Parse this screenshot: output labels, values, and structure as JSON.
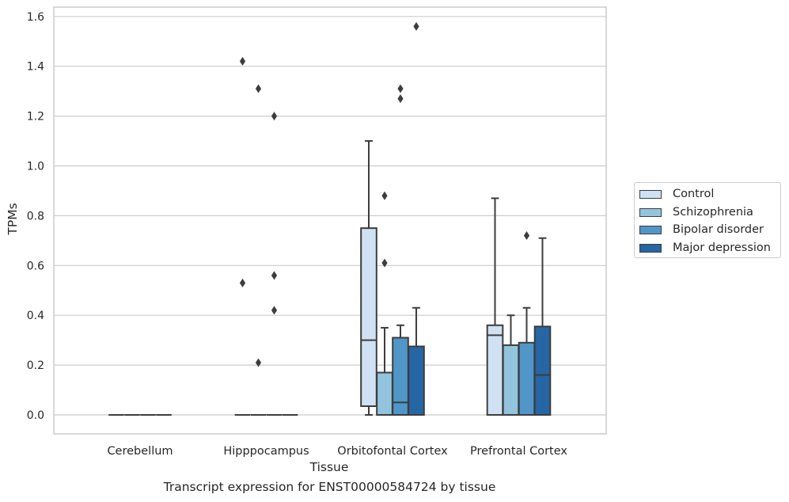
{
  "chart_data": {
    "type": "box",
    "xlabel": "Tissue",
    "ylabel": "TPMs",
    "caption": "Transcript expression for ENST00000584724 by tissue",
    "ylim": [
      -0.08,
      1.65
    ],
    "yticks": [
      0.0,
      0.2,
      0.4,
      0.6,
      0.8,
      1.0,
      1.2,
      1.4,
      1.6
    ],
    "ytick_labels": [
      "0.0",
      "0.2",
      "0.4",
      "0.6",
      "0.8",
      "1.0",
      "1.2",
      "1.4",
      "1.6"
    ],
    "categories": [
      "Cerebellum",
      "Hipppocampus",
      "Orbitofontal Cortex",
      "Prefrontal Cortex"
    ],
    "grid": "horizontal",
    "legend_position": "right",
    "series": [
      {
        "name": "Control",
        "color": "#cfe1f2",
        "boxes": [
          {
            "q1": 0,
            "median": 0,
            "q3": 0,
            "whisker_low": 0,
            "whisker_high": 0,
            "outliers": []
          },
          {
            "q1": 0,
            "median": 0,
            "q3": 0,
            "whisker_low": 0,
            "whisker_high": 0,
            "outliers": [
              0.53,
              1.42
            ]
          },
          {
            "q1": 0.035,
            "median": 0.3,
            "q3": 0.75,
            "whisker_low": 0,
            "whisker_high": 1.1,
            "outliers": []
          },
          {
            "q1": 0,
            "median": 0.32,
            "q3": 0.36,
            "whisker_low": 0,
            "whisker_high": 0.87,
            "outliers": []
          }
        ]
      },
      {
        "name": "Schizophrenia",
        "color": "#93c4de",
        "boxes": [
          {
            "q1": 0,
            "median": 0,
            "q3": 0,
            "whisker_low": 0,
            "whisker_high": 0,
            "outliers": []
          },
          {
            "q1": 0,
            "median": 0,
            "q3": 0,
            "whisker_low": 0,
            "whisker_high": 0,
            "outliers": [
              0.21,
              1.31
            ]
          },
          {
            "q1": 0,
            "median": 0,
            "q3": 0.17,
            "whisker_low": 0,
            "whisker_high": 0.35,
            "outliers": [
              0.61,
              0.88
            ]
          },
          {
            "q1": 0,
            "median": 0,
            "q3": 0.28,
            "whisker_low": 0,
            "whisker_high": 0.4,
            "outliers": []
          }
        ]
      },
      {
        "name": "Bipolar disorder",
        "color": "#5096c8",
        "boxes": [
          {
            "q1": 0,
            "median": 0,
            "q3": 0,
            "whisker_low": 0,
            "whisker_high": 0,
            "outliers": []
          },
          {
            "q1": 0,
            "median": 0,
            "q3": 0,
            "whisker_low": 0,
            "whisker_high": 0,
            "outliers": [
              0.42,
              0.56,
              1.2
            ]
          },
          {
            "q1": 0,
            "median": 0.05,
            "q3": 0.31,
            "whisker_low": 0,
            "whisker_high": 0.36,
            "outliers": [
              1.27,
              1.31
            ]
          },
          {
            "q1": 0,
            "median": 0,
            "q3": 0.29,
            "whisker_low": 0,
            "whisker_high": 0.43,
            "outliers": [
              0.72
            ]
          }
        ]
      },
      {
        "name": "Major depression",
        "color": "#2666a4",
        "boxes": [
          {
            "q1": 0,
            "median": 0,
            "q3": 0,
            "whisker_low": 0,
            "whisker_high": 0,
            "outliers": []
          },
          {
            "q1": 0,
            "median": 0,
            "q3": 0,
            "whisker_low": 0,
            "whisker_high": 0,
            "outliers": []
          },
          {
            "q1": 0,
            "median": 0,
            "q3": 0.275,
            "whisker_low": 0,
            "whisker_high": 0.43,
            "outliers": [
              1.56
            ]
          },
          {
            "q1": 0,
            "median": 0.16,
            "q3": 0.355,
            "whisker_low": 0,
            "whisker_high": 0.71,
            "outliers": []
          }
        ]
      }
    ]
  }
}
